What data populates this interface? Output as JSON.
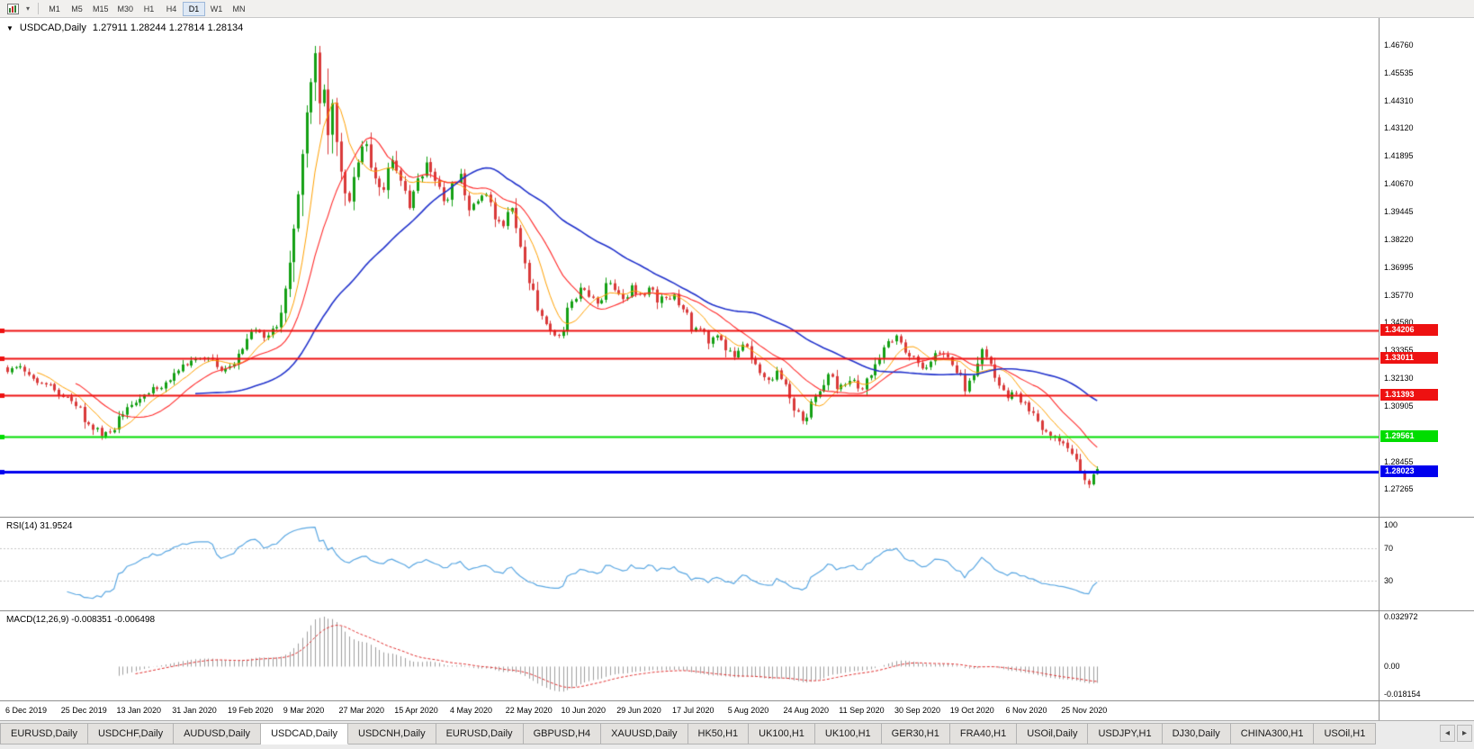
{
  "toolbar": {
    "timeframes": [
      "M1",
      "M5",
      "M15",
      "M30",
      "H1",
      "H4",
      "D1",
      "W1",
      "MN"
    ],
    "active_timeframe": "D1"
  },
  "chart": {
    "header": "USDCAD,Daily",
    "ohlc_text": "1.27911 1.28244 1.27814 1.28134"
  },
  "chart_data": {
    "type": "candlestick",
    "symbol": "USDCAD",
    "timeframe": "Daily",
    "current_ohlc": {
      "open": 1.27911,
      "high": 1.28244,
      "low": 1.27814,
      "close": 1.28134
    },
    "price_range": {
      "top": 1.4676,
      "bottom": 1.27265
    },
    "y_ticks": [
      "1.46760",
      "1.45535",
      "1.44310",
      "1.43120",
      "1.41895",
      "1.40670",
      "1.39445",
      "1.38220",
      "1.36995",
      "1.35770",
      "1.34580",
      "1.33355",
      "1.32130",
      "1.30905",
      "1.29680",
      "1.28455",
      "1.27265"
    ],
    "x_labels": [
      "6 Dec 2019",
      "25 Dec 2019",
      "13 Jan 2020",
      "31 Jan 2020",
      "19 Feb 2020",
      "9 Mar 2020",
      "27 Mar 2020",
      "15 Apr 2020",
      "4 May 2020",
      "22 May 2020",
      "10 Jun 2020",
      "29 Jun 2020",
      "17 Jul 2020",
      "5 Aug 2020",
      "24 Aug 2020",
      "11 Sep 2020",
      "30 Sep 2020",
      "19 Oct 2020",
      "6 Nov 2020",
      "25 Nov 2020"
    ],
    "candles_per_xlabel": 13,
    "num_candles": 256,
    "colors": {
      "up": "#14a014",
      "down": "#d93a3a"
    },
    "close_waypoints": [
      [
        0,
        1.324
      ],
      [
        3,
        1.3265
      ],
      [
        6,
        1.321
      ],
      [
        9,
        1.3185
      ],
      [
        13,
        1.313
      ],
      [
        16,
        1.309
      ],
      [
        19,
        1.301
      ],
      [
        22,
        1.2958
      ],
      [
        24,
        1.2975
      ],
      [
        26,
        1.3045
      ],
      [
        29,
        1.3095
      ],
      [
        32,
        1.314
      ],
      [
        35,
        1.3165
      ],
      [
        39,
        1.3235
      ],
      [
        42,
        1.327
      ],
      [
        45,
        1.33
      ],
      [
        48,
        1.3295
      ],
      [
        50,
        1.3245
      ],
      [
        52,
        1.3265
      ],
      [
        54,
        1.332
      ],
      [
        56,
        1.3385
      ],
      [
        58,
        1.3425
      ],
      [
        60,
        1.339
      ],
      [
        62,
        1.343
      ],
      [
        64,
        1.35
      ],
      [
        66,
        1.372
      ],
      [
        68,
        1.402
      ],
      [
        70,
        1.438
      ],
      [
        72,
        1.464
      ],
      [
        73,
        1.442
      ],
      [
        74,
        1.448
      ],
      [
        75,
        1.428
      ],
      [
        76,
        1.442
      ],
      [
        77,
        1.425
      ],
      [
        78,
        1.412
      ],
      [
        80,
        1.399
      ],
      [
        82,
        1.416
      ],
      [
        84,
        1.424
      ],
      [
        86,
        1.409
      ],
      [
        88,
        1.404
      ],
      [
        90,
        1.417
      ],
      [
        92,
        1.408
      ],
      [
        94,
        1.396
      ],
      [
        96,
        1.409
      ],
      [
        98,
        1.416
      ],
      [
        100,
        1.408
      ],
      [
        102,
        1.399
      ],
      [
        104,
        1.407
      ],
      [
        106,
        1.411
      ],
      [
        108,
        1.395
      ],
      [
        110,
        1.399
      ],
      [
        112,
        1.402
      ],
      [
        114,
        1.391
      ],
      [
        116,
        1.388
      ],
      [
        118,
        1.396
      ],
      [
        120,
        1.379
      ],
      [
        122,
        1.363
      ],
      [
        124,
        1.351
      ],
      [
        126,
        1.345
      ],
      [
        128,
        1.34
      ],
      [
        130,
        1.342
      ],
      [
        132,
        1.355
      ],
      [
        134,
        1.361
      ],
      [
        136,
        1.357
      ],
      [
        138,
        1.354
      ],
      [
        140,
        1.363
      ],
      [
        142,
        1.36
      ],
      [
        144,
        1.356
      ],
      [
        146,
        1.362
      ],
      [
        148,
        1.358
      ],
      [
        150,
        1.361
      ],
      [
        152,
        1.3545
      ],
      [
        154,
        1.3565
      ],
      [
        156,
        1.358
      ],
      [
        158,
        1.3515
      ],
      [
        160,
        1.342
      ],
      [
        162,
        1.343
      ],
      [
        164,
        1.3365
      ],
      [
        166,
        1.34
      ],
      [
        168,
        1.3335
      ],
      [
        170,
        1.3305
      ],
      [
        172,
        1.336
      ],
      [
        174,
        1.33
      ],
      [
        176,
        1.3235
      ],
      [
        178,
        1.3205
      ],
      [
        180,
        1.3245
      ],
      [
        182,
        1.3185
      ],
      [
        184,
        1.307
      ],
      [
        186,
        1.3025
      ],
      [
        188,
        1.311
      ],
      [
        190,
        1.3155
      ],
      [
        192,
        1.323
      ],
      [
        194,
        1.3165
      ],
      [
        196,
        1.3185
      ],
      [
        198,
        1.3205
      ],
      [
        200,
        1.3165
      ],
      [
        202,
        1.3225
      ],
      [
        204,
        1.33
      ],
      [
        206,
        1.3375
      ],
      [
        208,
        1.34
      ],
      [
        210,
        1.3325
      ],
      [
        212,
        1.331
      ],
      [
        214,
        1.3255
      ],
      [
        216,
        1.3285
      ],
      [
        218,
        1.332
      ],
      [
        220,
        1.3305
      ],
      [
        222,
        1.3235
      ],
      [
        224,
        1.3155
      ],
      [
        226,
        1.3225
      ],
      [
        228,
        1.334
      ],
      [
        230,
        1.3275
      ],
      [
        232,
        1.318
      ],
      [
        234,
        1.3125
      ],
      [
        236,
        1.3145
      ],
      [
        238,
        1.3105
      ],
      [
        240,
        1.306
      ],
      [
        242,
        1.2985
      ],
      [
        244,
        1.296
      ],
      [
        246,
        1.2935
      ],
      [
        248,
        1.2905
      ],
      [
        250,
        1.2855
      ],
      [
        251,
        1.2805
      ],
      [
        252,
        1.2765
      ],
      [
        253,
        1.2745
      ],
      [
        254,
        1.279
      ],
      [
        255,
        1.28134
      ]
    ],
    "hlines": [
      {
        "price": 1.34206,
        "color": "#ee1111",
        "width": 2,
        "label": "1.34206"
      },
      {
        "price": 1.33011,
        "color": "#ee1111",
        "width": 2,
        "label": "1.33011"
      },
      {
        "price": 1.31393,
        "color": "#ee1111",
        "width": 2,
        "label": "1.31393"
      },
      {
        "price": 1.29561,
        "color": "#00dd00",
        "width": 2,
        "label": "1.29561"
      },
      {
        "price": 1.28023,
        "color": "#0000ee",
        "width": 3,
        "label": "1.28023"
      }
    ],
    "moving_averages": [
      {
        "name": "fast-ma",
        "period": 8,
        "color": "#ffa000",
        "width": 1
      },
      {
        "name": "mid-ma",
        "period": 17,
        "color": "#ff2a2a",
        "width": 1.1
      },
      {
        "name": "slow-ma",
        "period": 45,
        "color": "#2233cc",
        "width": 1.6
      }
    ],
    "rsi": {
      "label": "RSI(14) 31.9524",
      "period": 14,
      "last_value": 31.9524,
      "levels": [
        70,
        30
      ],
      "axis_ticks": [
        "100",
        "70",
        "30"
      ],
      "color": "#5aa7e2"
    },
    "macd": {
      "label": "MACD(12,26,9) -0.008351 -0.006498",
      "fast": 12,
      "slow": 26,
      "signal": 9,
      "macd_value": -0.008351,
      "signal_value": -0.006498,
      "axis_ticks": [
        "0.032972",
        "0.00",
        "-0.018154"
      ],
      "axis_max": 0.032972,
      "axis_min": -0.018154,
      "histogram_color": "#9e9e9e",
      "signal_color": "#e03030"
    }
  },
  "tabs": {
    "items": [
      "EURUSD,Daily",
      "USDCHF,Daily",
      "AUDUSD,Daily",
      "USDCAD,Daily",
      "USDCNH,Daily",
      "EURUSD,Daily",
      "GBPUSD,H4",
      "XAUUSD,Daily",
      "HK50,H1",
      "UK100,H1",
      "UK100,H1",
      "GER30,H1",
      "FRA40,H1",
      "USOil,Daily",
      "USDJPY,H1",
      "DJ30,Daily",
      "CHINA300,H1",
      "USOil,H1"
    ],
    "active_index": 3,
    "scroll_left_glyph": "◂",
    "scroll_right_glyph": "▸"
  }
}
